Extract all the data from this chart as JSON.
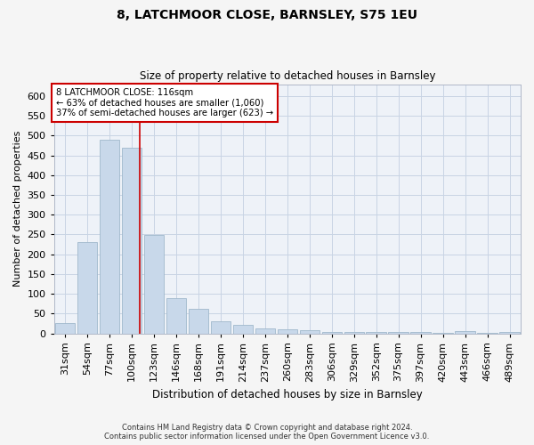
{
  "title1": "8, LATCHMOOR CLOSE, BARNSLEY, S75 1EU",
  "title2": "Size of property relative to detached houses in Barnsley",
  "xlabel": "Distribution of detached houses by size in Barnsley",
  "ylabel": "Number of detached properties",
  "bar_labels": [
    "31sqm",
    "54sqm",
    "77sqm",
    "100sqm",
    "123sqm",
    "146sqm",
    "168sqm",
    "191sqm",
    "214sqm",
    "237sqm",
    "260sqm",
    "283sqm",
    "306sqm",
    "329sqm",
    "352sqm",
    "375sqm",
    "397sqm",
    "420sqm",
    "443sqm",
    "466sqm",
    "489sqm"
  ],
  "bar_values": [
    25,
    230,
    490,
    470,
    248,
    88,
    62,
    30,
    22,
    12,
    10,
    8,
    4,
    4,
    4,
    4,
    4,
    2,
    6,
    1,
    4
  ],
  "bar_color": "#c8d8ea",
  "bar_edgecolor": "#a0b8cc",
  "grid_color": "#c8d4e4",
  "annotation_title": "8 LATCHMOOR CLOSE: 116sqm",
  "annotation_line1": "← 63% of detached houses are smaller (1,060)",
  "annotation_line2": "37% of semi-detached houses are larger (623) →",
  "annotation_box_facecolor": "#ffffff",
  "annotation_box_edgecolor": "#cc0000",
  "vline_color": "#cc0000",
  "footer_line1": "Contains HM Land Registry data © Crown copyright and database right 2024.",
  "footer_line2": "Contains public sector information licensed under the Open Government Licence v3.0.",
  "bg_color": "#eef2f8",
  "fig_bg_color": "#f5f5f5",
  "ylim_max": 630,
  "vline_x": 3.35,
  "figsize": [
    6.0,
    5.0
  ],
  "dpi": 100
}
